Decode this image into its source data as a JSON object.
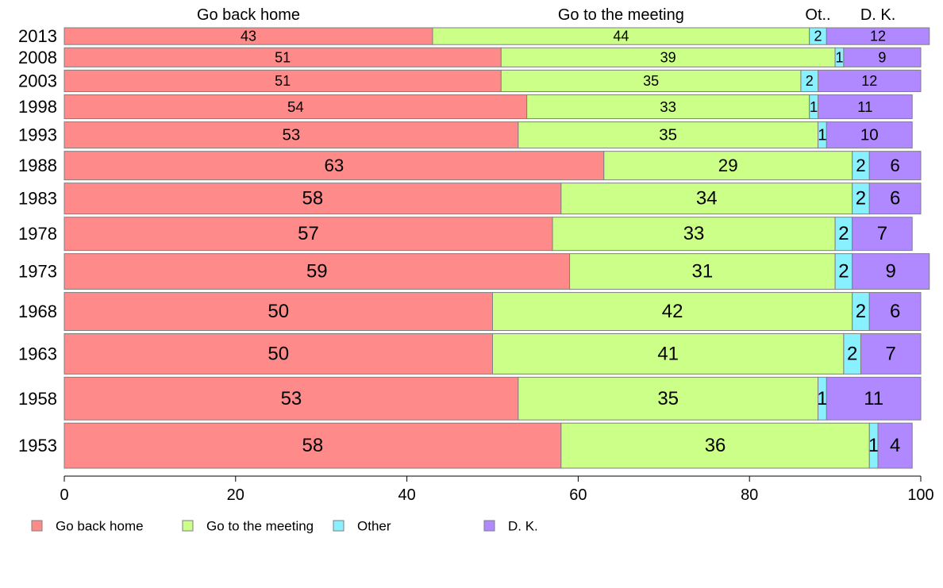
{
  "chart_data": {
    "type": "bar",
    "orientation": "horizontal-stacked-percent",
    "title": "",
    "xlabel": "",
    "ylabel": "",
    "xlim": [
      0,
      100
    ],
    "x_ticks": [
      "0",
      "20",
      "40",
      "60",
      "80",
      "100"
    ],
    "grid": false,
    "legend_position": "bottom-left",
    "top_labels": [
      "Go back home",
      "Go to the meeting",
      "Ot..",
      "D. K."
    ],
    "categories": [
      "2013",
      "2008",
      "2003",
      "1998",
      "1993",
      "1988",
      "1983",
      "1978",
      "1973",
      "1968",
      "1963",
      "1958",
      "1953"
    ],
    "series": [
      {
        "name": "Go back home",
        "color": "#ff8a8a",
        "values": [
          43,
          51,
          51,
          54,
          53,
          63,
          58,
          57,
          59,
          50,
          50,
          53,
          58
        ]
      },
      {
        "name": "Go to the meeting",
        "color": "#ccff88",
        "values": [
          44,
          39,
          35,
          33,
          35,
          29,
          34,
          33,
          31,
          42,
          41,
          35,
          36
        ]
      },
      {
        "name": "Other",
        "color": "#88f0ff",
        "values": [
          2,
          1,
          2,
          1,
          1,
          2,
          2,
          2,
          2,
          2,
          2,
          1,
          1
        ]
      },
      {
        "name": "D. K.",
        "color": "#b088ff",
        "values": [
          12,
          9,
          12,
          11,
          10,
          6,
          6,
          7,
          9,
          6,
          7,
          11,
          4
        ]
      }
    ]
  }
}
